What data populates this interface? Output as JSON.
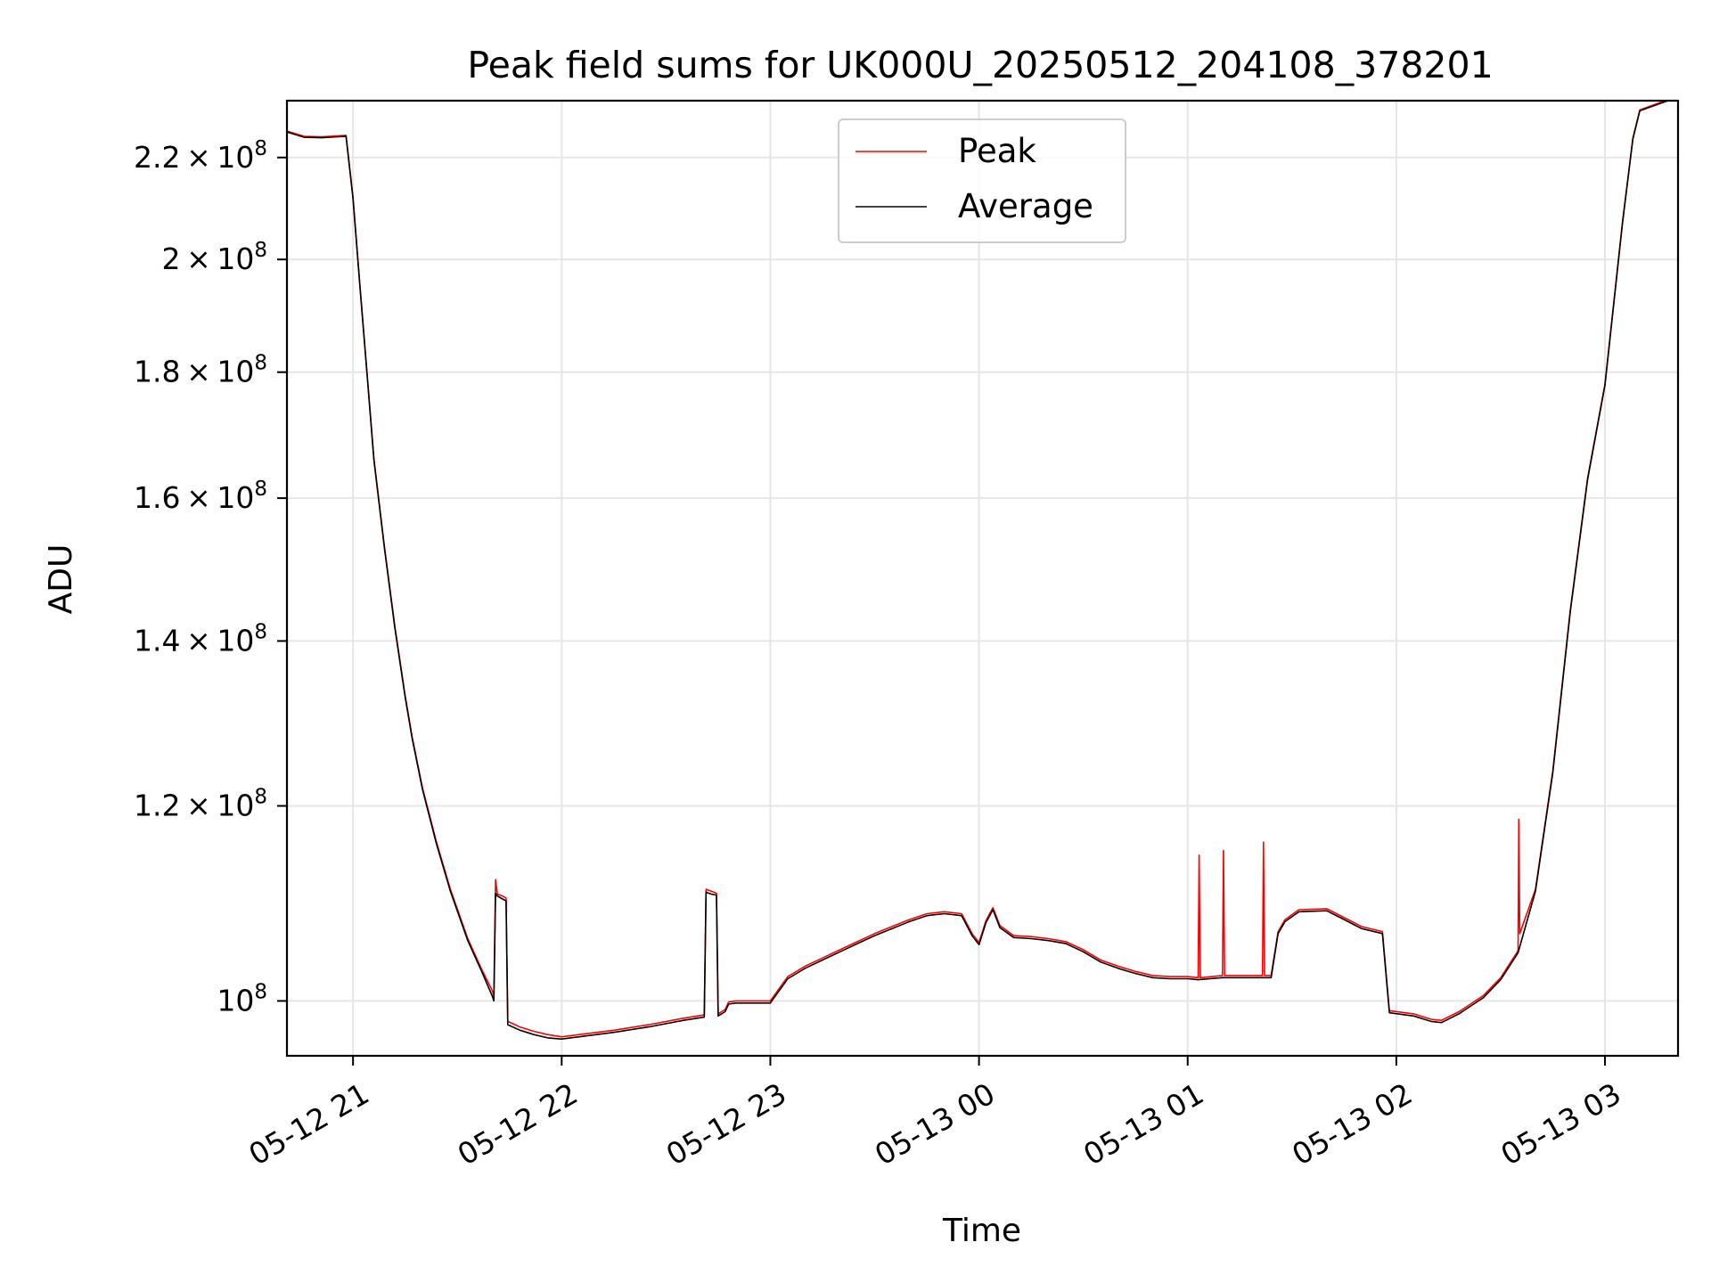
{
  "chart_data": {
    "type": "line",
    "title": "Peak field sums for UK000U_20250512_204108_378201",
    "xlabel": "Time",
    "ylabel": "ADU",
    "y_scale": "log",
    "ylim": [
      95000000,
      232000000
    ],
    "xlim": [
      "2025-05-12 20:41",
      "2025-05-13 03:21"
    ],
    "grid": true,
    "legend_position": "top-center",
    "x_tick_labels": [
      {
        "x": "2025-05-12 21:00",
        "label": "05-12 21"
      },
      {
        "x": "2025-05-12 22:00",
        "label": "05-12 22"
      },
      {
        "x": "2025-05-12 23:00",
        "label": "05-12 23"
      },
      {
        "x": "2025-05-13 00:00",
        "label": "05-13 00"
      },
      {
        "x": "2025-05-13 01:00",
        "label": "05-13 01"
      },
      {
        "x": "2025-05-13 02:00",
        "label": "05-13 02"
      },
      {
        "x": "2025-05-13 03:00",
        "label": "05-13 03"
      }
    ],
    "y_ticks": [
      {
        "value": 100000000,
        "mantissa": "",
        "exponent": "8"
      },
      {
        "value": 120000000,
        "mantissa": "1.2",
        "exponent": "8"
      },
      {
        "value": 140000000,
        "mantissa": "1.4",
        "exponent": "8"
      },
      {
        "value": 160000000,
        "mantissa": "1.6",
        "exponent": "8"
      },
      {
        "value": 180000000,
        "mantissa": "1.8",
        "exponent": "8"
      },
      {
        "value": 200000000,
        "mantissa": "2",
        "exponent": "8"
      },
      {
        "value": 220000000,
        "mantissa": "2.2",
        "exponent": "8"
      }
    ],
    "series": [
      {
        "name": "Peak",
        "color": "#ff0000",
        "points": [
          [
            "2025-05-12 20:41",
            225500000
          ],
          [
            "2025-05-12 20:46",
            224400000
          ],
          [
            "2025-05-12 20:51",
            224300000
          ],
          [
            "2025-05-12 20:58",
            224600000
          ],
          [
            "2025-05-12 21:00",
            212000000
          ],
          [
            "2025-05-12 21:02",
            195000000
          ],
          [
            "2025-05-12 21:04",
            180000000
          ],
          [
            "2025-05-12 21:06",
            166000000
          ],
          [
            "2025-05-12 21:09",
            153000000
          ],
          [
            "2025-05-12 21:12",
            142000000
          ],
          [
            "2025-05-12 21:15",
            133000000
          ],
          [
            "2025-05-12 21:17",
            128000000
          ],
          [
            "2025-05-12 21:20",
            122000000
          ],
          [
            "2025-05-12 21:24",
            116000000
          ],
          [
            "2025-05-12 21:28",
            111000000
          ],
          [
            "2025-05-12 21:33",
            106000000
          ],
          [
            "2025-05-12 21:37",
            103000000
          ],
          [
            "2025-05-12 21:40",
            101000000
          ],
          [
            "2025-05-12 21:40.5",
            100500000
          ],
          [
            "2025-05-12 21:41",
            112000000
          ],
          [
            "2025-05-12 21:41.5",
            110500000
          ],
          [
            "2025-05-12 21:43",
            110300000
          ],
          [
            "2025-05-12 21:44",
            110100000
          ],
          [
            "2025-05-12 21:44.5",
            98100000
          ],
          [
            "2025-05-12 21:48",
            97600000
          ],
          [
            "2025-05-12 21:52",
            97200000
          ],
          [
            "2025-05-12 21:56",
            96900000
          ],
          [
            "2025-05-12 22:00",
            96700000
          ],
          [
            "2025-05-12 22:05",
            96900000
          ],
          [
            "2025-05-12 22:15",
            97300000
          ],
          [
            "2025-05-12 22:25",
            97800000
          ],
          [
            "2025-05-12 22:35",
            98400000
          ],
          [
            "2025-05-12 22:41",
            98700000
          ],
          [
            "2025-05-12 22:41.5",
            111000000
          ],
          [
            "2025-05-12 22:43",
            110800000
          ],
          [
            "2025-05-12 22:44.5",
            110600000
          ],
          [
            "2025-05-12 22:45",
            98800000
          ],
          [
            "2025-05-12 22:47",
            99200000
          ],
          [
            "2025-05-12 22:48",
            99900000
          ],
          [
            "2025-05-12 22:50",
            100000000
          ],
          [
            "2025-05-12 22:55",
            100000000
          ],
          [
            "2025-05-12 23:00",
            100000000
          ],
          [
            "2025-05-12 23:05",
            102300000
          ],
          [
            "2025-05-12 23:10",
            103300000
          ],
          [
            "2025-05-12 23:15",
            104100000
          ],
          [
            "2025-05-12 23:20",
            104900000
          ],
          [
            "2025-05-12 23:25",
            105700000
          ],
          [
            "2025-05-12 23:30",
            106500000
          ],
          [
            "2025-05-12 23:35",
            107200000
          ],
          [
            "2025-05-12 23:40",
            107900000
          ],
          [
            "2025-05-12 23:45",
            108500000
          ],
          [
            "2025-05-12 23:50",
            108700000
          ],
          [
            "2025-05-12 23:55",
            108500000
          ],
          [
            "2025-05-12 23:58",
            106500000
          ],
          [
            "2025-05-13 00:00",
            105600000
          ],
          [
            "2025-05-13 00:02",
            107800000
          ],
          [
            "2025-05-13 00:04",
            109100000
          ],
          [
            "2025-05-13 00:06",
            107300000
          ],
          [
            "2025-05-13 00:10",
            106300000
          ],
          [
            "2025-05-13 00:15",
            106200000
          ],
          [
            "2025-05-13 00:20",
            106000000
          ],
          [
            "2025-05-13 00:25",
            105700000
          ],
          [
            "2025-05-13 00:30",
            104900000
          ],
          [
            "2025-05-13 00:35",
            103900000
          ],
          [
            "2025-05-13 00:40",
            103300000
          ],
          [
            "2025-05-13 00:45",
            102800000
          ],
          [
            "2025-05-13 00:50",
            102400000
          ],
          [
            "2025-05-13 00:55",
            102300000
          ],
          [
            "2025-05-13 01:00",
            102300000
          ],
          [
            "2025-05-13 01:03",
            102200000
          ],
          [
            "2025-05-13 01:03.3",
            114600000
          ],
          [
            "2025-05-13 01:03.6",
            102200000
          ],
          [
            "2025-05-13 01:10",
            102400000
          ],
          [
            "2025-05-13 01:10.3",
            115100000
          ],
          [
            "2025-05-13 01:10.6",
            102400000
          ],
          [
            "2025-05-13 01:21.5",
            102400000
          ],
          [
            "2025-05-13 01:21.8",
            116000000
          ],
          [
            "2025-05-13 01:22.1",
            102400000
          ],
          [
            "2025-05-13 01:24",
            102400000
          ],
          [
            "2025-05-13 01:26",
            106700000
          ],
          [
            "2025-05-13 01:28",
            107900000
          ],
          [
            "2025-05-13 01:32",
            108900000
          ],
          [
            "2025-05-13 01:40",
            109000000
          ],
          [
            "2025-05-13 01:45",
            108100000
          ],
          [
            "2025-05-13 01:50",
            107200000
          ],
          [
            "2025-05-13 01:56",
            106700000
          ],
          [
            "2025-05-13 01:58",
            99100000
          ],
          [
            "2025-05-13 02:05",
            98800000
          ],
          [
            "2025-05-13 02:10",
            98300000
          ],
          [
            "2025-05-13 02:13",
            98200000
          ],
          [
            "2025-05-13 02:18",
            99000000
          ],
          [
            "2025-05-13 02:25",
            100500000
          ],
          [
            "2025-05-13 02:30",
            102200000
          ],
          [
            "2025-05-13 02:35",
            104800000
          ],
          [
            "2025-05-13 02:35.2",
            118500000
          ],
          [
            "2025-05-13 02:35.5",
            106500000
          ],
          [
            "2025-05-13 02:40",
            111000000
          ],
          [
            "2025-05-13 02:45",
            124000000
          ],
          [
            "2025-05-13 02:50",
            144000000
          ],
          [
            "2025-05-13 02:55",
            163000000
          ],
          [
            "2025-05-13 03:00",
            178000000
          ],
          [
            "2025-05-13 03:05",
            207000000
          ],
          [
            "2025-05-13 03:08",
            224000000
          ],
          [
            "2025-05-13 03:10",
            230000000
          ],
          [
            "2025-05-13 03:21",
            233000000
          ]
        ]
      },
      {
        "name": "Average",
        "color": "#000000",
        "points": [
          [
            "2025-05-12 20:41",
            225300000
          ],
          [
            "2025-05-12 20:46",
            224200000
          ],
          [
            "2025-05-12 20:51",
            224100000
          ],
          [
            "2025-05-12 20:58",
            224400000
          ],
          [
            "2025-05-12 21:00",
            211800000
          ],
          [
            "2025-05-12 21:02",
            194800000
          ],
          [
            "2025-05-12 21:04",
            179800000
          ],
          [
            "2025-05-12 21:06",
            165800000
          ],
          [
            "2025-05-12 21:09",
            152800000
          ],
          [
            "2025-05-12 21:12",
            141800000
          ],
          [
            "2025-05-12 21:15",
            132800000
          ],
          [
            "2025-05-12 21:17",
            127800000
          ],
          [
            "2025-05-12 21:20",
            121800000
          ],
          [
            "2025-05-12 21:24",
            115800000
          ],
          [
            "2025-05-12 21:28",
            110800000
          ],
          [
            "2025-05-12 21:33",
            105800000
          ],
          [
            "2025-05-12 21:37",
            102800000
          ],
          [
            "2025-05-12 21:40",
            100500000
          ],
          [
            "2025-05-12 21:40.5",
            100000000
          ],
          [
            "2025-05-12 21:41",
            110600000
          ],
          [
            "2025-05-12 21:41.5",
            110300000
          ],
          [
            "2025-05-12 21:43",
            110000000
          ],
          [
            "2025-05-12 21:44",
            109800000
          ],
          [
            "2025-05-12 21:44.5",
            97800000
          ],
          [
            "2025-05-12 21:48",
            97300000
          ],
          [
            "2025-05-12 21:52",
            96900000
          ],
          [
            "2025-05-12 21:56",
            96600000
          ],
          [
            "2025-05-12 22:00",
            96500000
          ],
          [
            "2025-05-12 22:05",
            96700000
          ],
          [
            "2025-05-12 22:15",
            97100000
          ],
          [
            "2025-05-12 22:25",
            97600000
          ],
          [
            "2025-05-12 22:35",
            98200000
          ],
          [
            "2025-05-12 22:41",
            98500000
          ],
          [
            "2025-05-12 22:41.5",
            110700000
          ],
          [
            "2025-05-12 22:43",
            110500000
          ],
          [
            "2025-05-12 22:44.5",
            110400000
          ],
          [
            "2025-05-12 22:45",
            98600000
          ],
          [
            "2025-05-12 22:47",
            99000000
          ],
          [
            "2025-05-12 22:48",
            99700000
          ],
          [
            "2025-05-12 22:50",
            99800000
          ],
          [
            "2025-05-12 22:55",
            99800000
          ],
          [
            "2025-05-12 23:00",
            99800000
          ],
          [
            "2025-05-12 23:05",
            102100000
          ],
          [
            "2025-05-12 23:10",
            103100000
          ],
          [
            "2025-05-12 23:15",
            103900000
          ],
          [
            "2025-05-12 23:20",
            104700000
          ],
          [
            "2025-05-12 23:25",
            105500000
          ],
          [
            "2025-05-12 23:30",
            106300000
          ],
          [
            "2025-05-12 23:35",
            107000000
          ],
          [
            "2025-05-12 23:40",
            107700000
          ],
          [
            "2025-05-12 23:45",
            108300000
          ],
          [
            "2025-05-12 23:50",
            108500000
          ],
          [
            "2025-05-12 23:55",
            108300000
          ],
          [
            "2025-05-12 23:58",
            106300000
          ],
          [
            "2025-05-13 00:00",
            105400000
          ],
          [
            "2025-05-13 00:02",
            107600000
          ],
          [
            "2025-05-13 00:04",
            108900000
          ],
          [
            "2025-05-13 00:06",
            107100000
          ],
          [
            "2025-05-13 00:10",
            106100000
          ],
          [
            "2025-05-13 00:15",
            106000000
          ],
          [
            "2025-05-13 00:20",
            105800000
          ],
          [
            "2025-05-13 00:25",
            105500000
          ],
          [
            "2025-05-13 00:30",
            104700000
          ],
          [
            "2025-05-13 00:35",
            103700000
          ],
          [
            "2025-05-13 00:40",
            103100000
          ],
          [
            "2025-05-13 00:45",
            102600000
          ],
          [
            "2025-05-13 00:50",
            102200000
          ],
          [
            "2025-05-13 00:55",
            102100000
          ],
          [
            "2025-05-13 01:00",
            102100000
          ],
          [
            "2025-05-13 01:03",
            102000000
          ],
          [
            "2025-05-13 01:10",
            102200000
          ],
          [
            "2025-05-13 01:24",
            102200000
          ],
          [
            "2025-05-13 01:26",
            106500000
          ],
          [
            "2025-05-13 01:28",
            107700000
          ],
          [
            "2025-05-13 01:32",
            108700000
          ],
          [
            "2025-05-13 01:40",
            108800000
          ],
          [
            "2025-05-13 01:45",
            107900000
          ],
          [
            "2025-05-13 01:50",
            107000000
          ],
          [
            "2025-05-13 01:56",
            106500000
          ],
          [
            "2025-05-13 01:58",
            98900000
          ],
          [
            "2025-05-13 02:05",
            98600000
          ],
          [
            "2025-05-13 02:10",
            98100000
          ],
          [
            "2025-05-13 02:13",
            98000000
          ],
          [
            "2025-05-13 02:18",
            98800000
          ],
          [
            "2025-05-13 02:25",
            100300000
          ],
          [
            "2025-05-13 02:30",
            102000000
          ],
          [
            "2025-05-13 02:35",
            104600000
          ],
          [
            "2025-05-13 02:40",
            110800000
          ],
          [
            "2025-05-13 02:45",
            123800000
          ],
          [
            "2025-05-13 02:50",
            143800000
          ],
          [
            "2025-05-13 02:55",
            162800000
          ],
          [
            "2025-05-13 03:00",
            177800000
          ],
          [
            "2025-05-13 03:05",
            206800000
          ],
          [
            "2025-05-13 03:08",
            223800000
          ],
          [
            "2025-05-13 03:10",
            229800000
          ],
          [
            "2025-05-13 03:21",
            232800000
          ]
        ]
      }
    ]
  }
}
